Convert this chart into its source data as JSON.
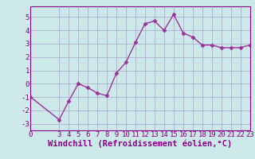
{
  "x": [
    0,
    3,
    4,
    5,
    6,
    7,
    8,
    9,
    10,
    11,
    12,
    13,
    14,
    15,
    16,
    17,
    18,
    19,
    20,
    21,
    22,
    23
  ],
  "y": [
    -1.0,
    -2.7,
    -1.3,
    0.0,
    -0.3,
    -0.7,
    -0.9,
    0.8,
    1.6,
    3.1,
    4.5,
    4.7,
    4.0,
    5.2,
    3.8,
    3.5,
    2.9,
    2.9,
    2.7,
    2.7,
    2.7,
    2.9
  ],
  "line_color": "#993399",
  "marker": "D",
  "marker_size": 2.5,
  "background_color": "#cce8e8",
  "grid_color": "#aaaacc",
  "xlim": [
    0,
    23
  ],
  "ylim": [
    -3.5,
    5.8
  ],
  "yticks": [
    -3,
    -2,
    -1,
    0,
    1,
    2,
    3,
    4,
    5
  ],
  "xticks": [
    0,
    3,
    4,
    5,
    6,
    7,
    8,
    9,
    10,
    11,
    12,
    13,
    14,
    15,
    16,
    17,
    18,
    19,
    20,
    21,
    22,
    23
  ],
  "font_color": "#880088",
  "tick_fontsize": 6.5,
  "xlabel": "Windchill (Refroidissement éolien,°C)",
  "xlabel_fontsize": 7.5,
  "linewidth": 1.0
}
